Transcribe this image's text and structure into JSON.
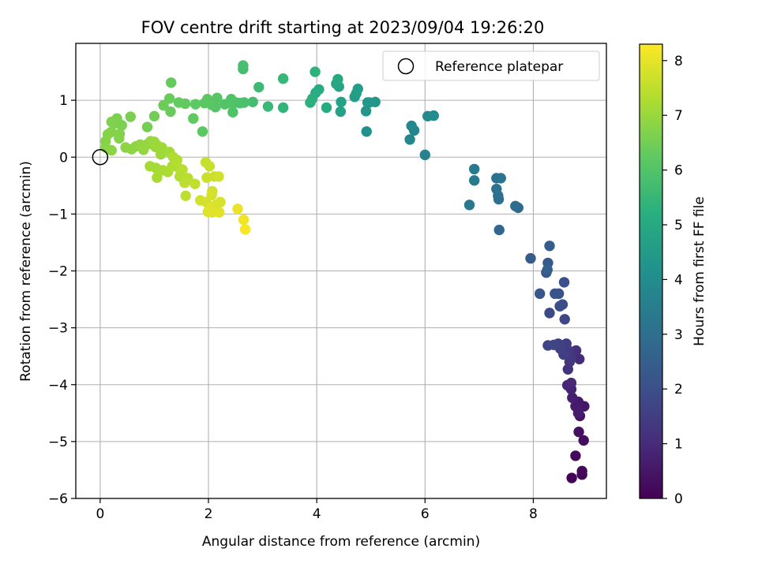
{
  "chart_data": {
    "type": "scatter",
    "title": "FOV centre drift starting at 2023/09/04 19:26:20",
    "xlabel": "Angular distance from reference (arcmin)",
    "ylabel": "Rotation from reference (arcmin)",
    "xlim": [
      -0.45,
      9.35
    ],
    "ylim": [
      -6.0,
      2.0
    ],
    "x_ticks": [
      0,
      2,
      4,
      6,
      8
    ],
    "y_ticks": [
      -6,
      -5,
      -4,
      -3,
      -2,
      -1,
      0,
      1
    ],
    "grid": true,
    "legend": {
      "position": "top-right",
      "entries": [
        "Reference platepar"
      ]
    },
    "reference_point": {
      "x": 0,
      "y": 0,
      "label": "Reference platepar"
    },
    "colorbar": {
      "label": "Hours from first FF file",
      "range": [
        0,
        8.3
      ],
      "ticks": [
        0,
        1,
        2,
        3,
        4,
        5,
        6,
        7,
        8
      ],
      "colormap": "viridis"
    },
    "series": [
      {
        "points": [
          [
            8.71,
            -5.64,
            0.05
          ],
          [
            8.9,
            -5.58,
            0.1
          ],
          [
            8.9,
            -5.52,
            0.15
          ],
          [
            8.78,
            -5.25,
            0.2
          ],
          [
            8.93,
            -4.98,
            0.28
          ],
          [
            8.84,
            -4.83,
            0.35
          ],
          [
            8.86,
            -4.55,
            0.42
          ],
          [
            8.94,
            -4.38,
            0.5
          ],
          [
            8.83,
            -4.3,
            0.56
          ],
          [
            8.78,
            -4.38,
            0.62
          ],
          [
            8.83,
            -4.5,
            0.68
          ],
          [
            8.72,
            -4.23,
            0.75
          ],
          [
            8.7,
            -4.08,
            0.82
          ],
          [
            8.63,
            -4.01,
            0.9
          ],
          [
            8.7,
            -3.97,
            0.96
          ],
          [
            8.85,
            -3.55,
            1.05
          ],
          [
            8.79,
            -3.4,
            1.12
          ],
          [
            8.64,
            -3.73,
            1.2
          ],
          [
            8.67,
            -3.6,
            1.28
          ],
          [
            8.7,
            -3.53,
            1.35
          ],
          [
            8.65,
            -3.4,
            1.42
          ],
          [
            8.61,
            -3.28,
            1.5
          ],
          [
            8.56,
            -3.47,
            1.55
          ],
          [
            8.5,
            -3.37,
            1.6
          ],
          [
            8.46,
            -3.28,
            1.66
          ],
          [
            8.27,
            -3.31,
            1.72
          ],
          [
            8.38,
            -3.3,
            1.76
          ],
          [
            8.58,
            -2.85,
            1.82
          ],
          [
            8.3,
            -2.74,
            1.88
          ],
          [
            8.54,
            -2.59,
            1.94
          ],
          [
            8.49,
            -2.62,
            2.0
          ],
          [
            8.57,
            -2.2,
            2.06
          ],
          [
            8.47,
            -2.4,
            2.12
          ],
          [
            8.4,
            -2.4,
            2.18
          ],
          [
            8.12,
            -2.4,
            2.24
          ],
          [
            8.24,
            -2.03,
            2.3
          ],
          [
            8.27,
            -1.86,
            2.36
          ],
          [
            7.95,
            -1.78,
            2.42
          ],
          [
            8.3,
            -1.56,
            2.48
          ],
          [
            8.26,
            -1.98,
            2.55
          ],
          [
            7.37,
            -1.28,
            2.75
          ],
          [
            7.72,
            -0.89,
            2.85
          ],
          [
            7.67,
            -0.86,
            2.92
          ],
          [
            7.36,
            -0.74,
            3.0
          ],
          [
            7.35,
            -0.68,
            3.05
          ],
          [
            7.32,
            -0.56,
            3.1
          ],
          [
            7.32,
            -0.37,
            3.15
          ],
          [
            7.4,
            -0.37,
            3.2
          ],
          [
            6.82,
            -0.84,
            3.3
          ],
          [
            6.91,
            -0.41,
            3.38
          ],
          [
            6.91,
            -0.21,
            3.42
          ],
          [
            6.0,
            0.04,
            3.7
          ],
          [
            5.72,
            0.31,
            3.8
          ],
          [
            5.8,
            0.47,
            3.86
          ],
          [
            5.75,
            0.55,
            3.92
          ],
          [
            6.05,
            0.72,
            3.98
          ],
          [
            6.16,
            0.73,
            4.05
          ],
          [
            4.92,
            0.45,
            4.2
          ],
          [
            4.94,
            0.96,
            4.3
          ],
          [
            4.91,
            0.81,
            4.35
          ],
          [
            4.97,
            0.96,
            4.4
          ],
          [
            5.08,
            0.97,
            4.45
          ],
          [
            4.73,
            1.12,
            4.55
          ],
          [
            4.7,
            1.06,
            4.62
          ],
          [
            4.76,
            1.2,
            4.68
          ],
          [
            4.44,
            0.8,
            4.75
          ],
          [
            4.45,
            0.97,
            4.8
          ],
          [
            4.41,
            1.24,
            4.88
          ],
          [
            4.36,
            1.29,
            4.95
          ],
          [
            4.39,
            1.37,
            5.0
          ],
          [
            4.18,
            0.87,
            5.08
          ],
          [
            4.04,
            1.19,
            5.12
          ],
          [
            3.98,
            1.13,
            5.18
          ],
          [
            3.92,
            1.03,
            5.24
          ],
          [
            3.88,
            0.96,
            5.3
          ],
          [
            3.97,
            1.5,
            5.35
          ],
          [
            3.38,
            0.87,
            5.45
          ],
          [
            3.38,
            1.38,
            5.52
          ],
          [
            3.1,
            0.89,
            5.58
          ],
          [
            2.93,
            1.23,
            5.65
          ],
          [
            2.82,
            0.97,
            5.75
          ],
          [
            2.64,
            1.55,
            5.82
          ],
          [
            2.64,
            1.61,
            5.85
          ],
          [
            2.66,
            0.96,
            5.9
          ],
          [
            2.58,
            0.95,
            5.92
          ],
          [
            2.5,
            0.96,
            5.95
          ],
          [
            2.45,
            0.79,
            5.98
          ],
          [
            2.42,
            1.02,
            6.0
          ],
          [
            2.39,
            0.95,
            6.02
          ],
          [
            2.3,
            0.93,
            6.05
          ],
          [
            2.13,
            0.88,
            6.1
          ],
          [
            2.16,
            1.04,
            6.12
          ],
          [
            2.06,
            0.92,
            6.15
          ],
          [
            1.98,
            1.02,
            6.18
          ],
          [
            1.93,
            0.95,
            6.2
          ],
          [
            1.89,
            0.45,
            6.22
          ],
          [
            1.76,
            0.93,
            6.25
          ],
          [
            1.72,
            0.68,
            6.28
          ],
          [
            1.57,
            0.94,
            6.3
          ],
          [
            1.45,
            0.96,
            6.32
          ],
          [
            1.31,
            1.31,
            6.35
          ],
          [
            1.28,
            1.03,
            6.38
          ],
          [
            1.3,
            0.8,
            6.4
          ],
          [
            1.17,
            0.91,
            6.42
          ],
          [
            1.0,
            0.72,
            6.5
          ],
          [
            0.87,
            0.53,
            6.55
          ],
          [
            0.56,
            0.71,
            6.6
          ],
          [
            0.4,
            0.56,
            6.62
          ],
          [
            0.31,
            0.68,
            6.65
          ],
          [
            0.27,
            0.59,
            6.68
          ],
          [
            0.21,
            0.62,
            6.7
          ],
          [
            0.2,
            0.44,
            6.72
          ],
          [
            0.36,
            0.41,
            6.74
          ],
          [
            0.35,
            0.33,
            6.76
          ],
          [
            0.14,
            0.4,
            6.78
          ],
          [
            0.1,
            0.28,
            6.8
          ],
          [
            0.1,
            0.17,
            6.82
          ],
          [
            0.21,
            0.12,
            6.84
          ],
          [
            0.47,
            0.17,
            6.86
          ],
          [
            0.58,
            0.14,
            6.88
          ],
          [
            0.66,
            0.19,
            6.9
          ],
          [
            0.74,
            0.22,
            6.92
          ],
          [
            0.86,
            0.22,
            6.95
          ],
          [
            0.8,
            0.13,
            6.98
          ],
          [
            0.93,
            0.28,
            7.0
          ],
          [
            1.0,
            0.27,
            7.02
          ],
          [
            1.02,
            0.18,
            7.05
          ],
          [
            1.05,
            0.21,
            7.08
          ],
          [
            1.12,
            0.05,
            7.1
          ],
          [
            1.14,
            0.17,
            7.12
          ],
          [
            1.28,
            0.09,
            7.15
          ],
          [
            0.92,
            -0.16,
            7.18
          ],
          [
            1.03,
            -0.19,
            7.2
          ],
          [
            1.05,
            -0.36,
            7.22
          ],
          [
            1.16,
            -0.23,
            7.25
          ],
          [
            1.25,
            -0.26,
            7.28
          ],
          [
            1.33,
            -0.16,
            7.3
          ],
          [
            1.35,
            0.0,
            7.32
          ],
          [
            1.42,
            -0.05,
            7.35
          ],
          [
            1.44,
            -0.18,
            7.38
          ],
          [
            1.47,
            -0.34,
            7.4
          ],
          [
            1.52,
            -0.22,
            7.42
          ],
          [
            1.62,
            -0.37,
            7.45
          ],
          [
            1.56,
            -0.45,
            7.48
          ],
          [
            1.58,
            -0.68,
            7.5
          ],
          [
            1.75,
            -0.47,
            7.55
          ],
          [
            1.95,
            -0.09,
            7.6
          ],
          [
            2.02,
            -0.16,
            7.62
          ],
          [
            1.97,
            -0.36,
            7.65
          ],
          [
            2.11,
            -0.34,
            7.68
          ],
          [
            2.19,
            -0.34,
            7.7
          ],
          [
            2.07,
            -0.6,
            7.72
          ],
          [
            1.85,
            -0.76,
            7.75
          ],
          [
            1.96,
            -0.79,
            7.78
          ],
          [
            2.06,
            -0.67,
            7.8
          ],
          [
            2.22,
            -0.79,
            7.82
          ],
          [
            2.14,
            -0.84,
            7.85
          ],
          [
            2.04,
            -0.89,
            7.88
          ],
          [
            1.99,
            -0.96,
            7.9
          ],
          [
            2.07,
            -0.97,
            7.92
          ],
          [
            2.2,
            -0.97,
            7.95
          ],
          [
            2.54,
            -0.91,
            8.05
          ],
          [
            2.65,
            -1.1,
            8.15
          ],
          [
            2.68,
            -1.27,
            8.25
          ]
        ]
      }
    ]
  }
}
